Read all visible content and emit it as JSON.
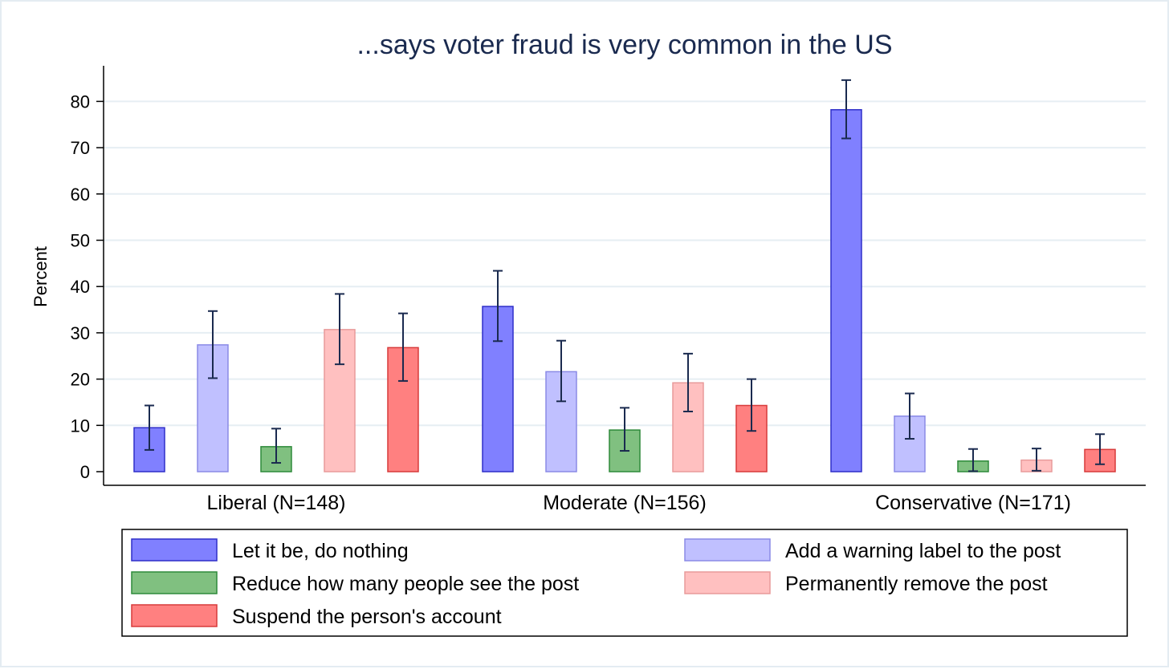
{
  "chart_data": {
    "type": "bar",
    "title": "...says voter fraud is very common in the US",
    "ylabel": "Percent",
    "xlabel": "",
    "ylim": [
      0,
      88
    ],
    "yticks": [
      "0",
      "10",
      "20",
      "30",
      "40",
      "50",
      "60",
      "70",
      "80"
    ],
    "grid": true,
    "legend_position": "bottom",
    "categories": [
      "Liberal (N=148)",
      "Moderate (N=156)",
      "Conservative (N=171)"
    ],
    "series": [
      {
        "name": "Let it be, do nothing",
        "color": "#8080ff",
        "edge": "#2f2fc8",
        "values": [
          9.5,
          35.7,
          78.2
        ],
        "ci_low": [
          4.7,
          28.2,
          72.0
        ],
        "ci_high": [
          14.3,
          43.4,
          84.6
        ]
      },
      {
        "name": "Add a warning label to the post",
        "color": "#c0c0ff",
        "edge": "#8a8ae6",
        "values": [
          27.4,
          21.6,
          12.0
        ],
        "ci_low": [
          20.2,
          15.2,
          7.1
        ],
        "ci_high": [
          34.7,
          28.3,
          16.9
        ]
      },
      {
        "name": "Reduce how many people see the post",
        "color": "#80c080",
        "edge": "#2e8a3a",
        "values": [
          5.4,
          9.0,
          2.3
        ],
        "ci_low": [
          1.9,
          4.5,
          0.1
        ],
        "ci_high": [
          9.3,
          13.8,
          4.9
        ]
      },
      {
        "name": "Permanently remove the post",
        "color": "#ffc0c0",
        "edge": "#e89a9a",
        "values": [
          30.7,
          19.2,
          2.5
        ],
        "ci_low": [
          23.2,
          13.0,
          0.2
        ],
        "ci_high": [
          38.4,
          25.5,
          5.0
        ]
      },
      {
        "name": "Suspend the person's account",
        "color": "#ff8080",
        "edge": "#d73a3a",
        "values": [
          26.8,
          14.3,
          4.8
        ],
        "ci_low": [
          19.6,
          8.8,
          1.6
        ],
        "ci_high": [
          34.2,
          20.0,
          8.1
        ]
      }
    ],
    "legend_order": [
      0,
      1,
      2,
      3,
      4
    ],
    "colors": {
      "title": "#1a2a4f",
      "errorbar": "#1a2a4f",
      "grid": "#e6eef3"
    }
  }
}
